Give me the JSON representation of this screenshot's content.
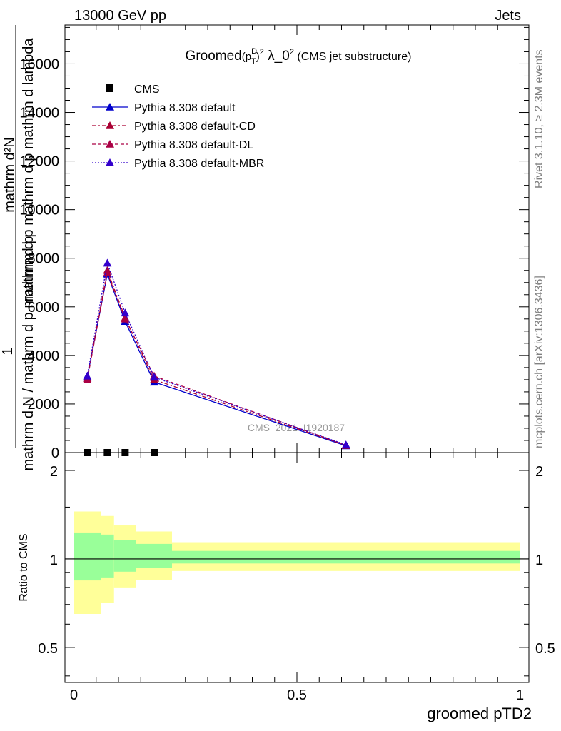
{
  "header": {
    "left": "13000 GeV pp",
    "right": "Jets"
  },
  "side_labels": {
    "rivet": "Rivet 3.1.10, ≥ 2.3M events",
    "mcplots": "mcplots.cern.ch [arXiv:1306.3436]"
  },
  "watermark": "CMS_2021_I1920187",
  "chart_data": [
    {
      "type": "line",
      "title": "Groomed (p_T^D)^2 λ_0^2 (CMS jet substructure)",
      "ylabel": "1 / mathrm d N  mathrm d N / mathrm d p mathrm d p mathrm d lambda",
      "ylabel_lines": [
        "mathrm d²N",
        "mathrm d p mathrm d p mathrm d lambda",
        "1",
        "mathrm d N / mathrm d p mathrm d p",
        "mathrm d N"
      ],
      "xlim": [
        -0.02,
        1.02
      ],
      "ylim": [
        0,
        17600
      ],
      "yticks": [
        0,
        2000,
        4000,
        6000,
        8000,
        10000,
        12000,
        14000,
        16000
      ],
      "ytick_labels": [
        "0",
        "2000",
        "4000",
        "6000",
        "8000",
        "10000",
        "12000",
        "14000",
        "16000"
      ],
      "legend_position": "top-left",
      "series": [
        {
          "name": "CMS",
          "style": "marker",
          "color": "#000000",
          "x": [
            0.03,
            0.075,
            0.115,
            0.18
          ],
          "y": [
            0,
            0,
            0,
            0
          ]
        },
        {
          "name": "Pythia 8.308 default",
          "style": "solid",
          "color": "#0000cc",
          "x": [
            0.03,
            0.075,
            0.115,
            0.18,
            0.61
          ],
          "y": [
            3100,
            7350,
            5400,
            2900,
            280
          ]
        },
        {
          "name": "Pythia 8.308 default-CD",
          "style": "dashdot",
          "color": "#aa0033",
          "x": [
            0.03,
            0.075,
            0.115,
            0.18,
            0.61
          ],
          "y": [
            3050,
            7500,
            5550,
            3000,
            300
          ]
        },
        {
          "name": "Pythia 8.308 default-DL",
          "style": "dashed",
          "color": "#aa0044",
          "x": [
            0.03,
            0.075,
            0.115,
            0.18,
            0.61
          ],
          "y": [
            3000,
            7400,
            5500,
            3150,
            300
          ]
        },
        {
          "name": "Pythia 8.308 default-MBR",
          "style": "dotted",
          "color": "#3300cc",
          "x": [
            0.03,
            0.075,
            0.115,
            0.18,
            0.61
          ],
          "y": [
            3150,
            7800,
            5750,
            3100,
            320
          ]
        }
      ]
    },
    {
      "type": "area",
      "ylabel": "Ratio to CMS",
      "xlabel": "groomed pTD2",
      "xlim": [
        -0.02,
        1.02
      ],
      "ylim": [
        0.38,
        2.3
      ],
      "yscale": "log",
      "yticks": [
        0.5,
        1,
        2
      ],
      "ytick_labels": [
        "0.5",
        "1",
        "2"
      ],
      "xticks": [
        0,
        0.5,
        1
      ],
      "xtick_labels": [
        "0",
        "0.5",
        "1"
      ],
      "bins": [
        {
          "x0": 0.0,
          "x1": 0.06,
          "inner_lo": 0.845,
          "inner_hi": 1.23,
          "outer_lo": 0.65,
          "outer_hi": 1.45
        },
        {
          "x0": 0.06,
          "x1": 0.09,
          "inner_lo": 0.865,
          "inner_hi": 1.21,
          "outer_lo": 0.71,
          "outer_hi": 1.4
        },
        {
          "x0": 0.09,
          "x1": 0.14,
          "inner_lo": 0.905,
          "inner_hi": 1.16,
          "outer_lo": 0.8,
          "outer_hi": 1.3
        },
        {
          "x0": 0.14,
          "x1": 0.22,
          "inner_lo": 0.93,
          "inner_hi": 1.125,
          "outer_lo": 0.85,
          "outer_hi": 1.24
        },
        {
          "x0": 0.22,
          "x1": 1.0,
          "inner_lo": 0.965,
          "inner_hi": 1.065,
          "outer_lo": 0.91,
          "outer_hi": 1.14
        }
      ],
      "colors": {
        "inner": "#99ff99",
        "outer": "#ffff99"
      },
      "reference_line": 1
    }
  ]
}
